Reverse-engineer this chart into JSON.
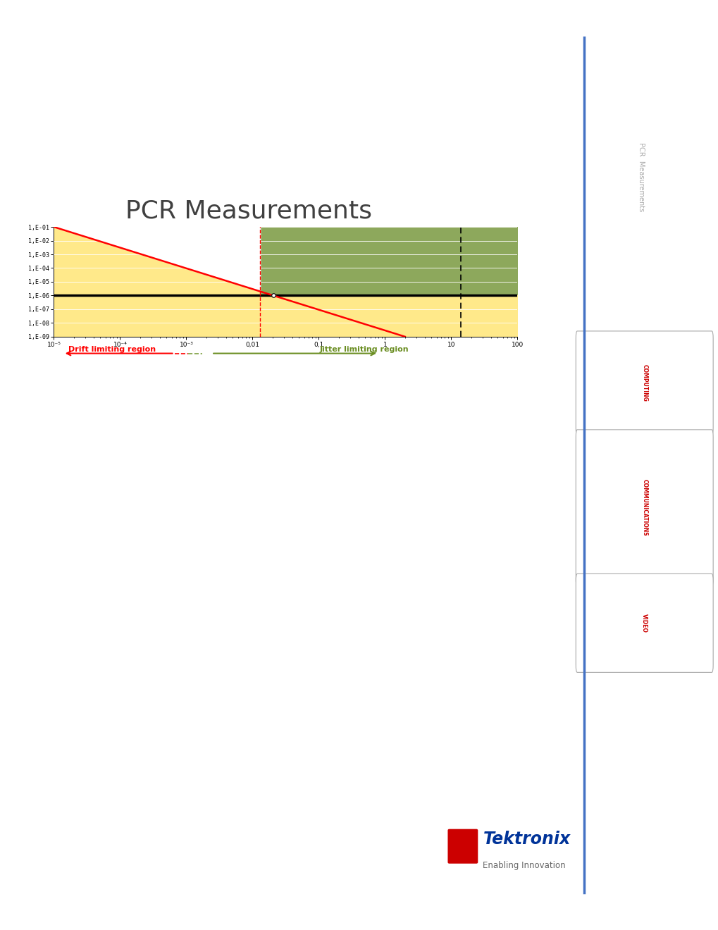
{
  "title": "PCR Measurements",
  "xmin": 1e-05,
  "xmax": 100,
  "ymin": 1e-09,
  "ymax": 0.1,
  "ytick_vals": [
    0.1,
    0.01,
    0.001,
    0.0001,
    1e-05,
    1e-06,
    1e-07,
    1e-08,
    1e-09
  ],
  "ytick_labels": [
    "1,E-01",
    "1,E-02",
    "1,E-03",
    "1,E-04",
    "1,E-05",
    "1,E-06",
    "1,E-07",
    "1,E-08",
    "1,E-09"
  ],
  "xtick_vals": [
    1e-05,
    0.0001,
    0.001,
    0.01,
    0.1,
    1,
    10,
    100
  ],
  "xtick_labels": [
    "10⁻⁵",
    "10⁻⁴",
    "10⁻³",
    "0,01",
    "0,1",
    "1",
    "10",
    "100"
  ],
  "color_yellow": "#FFE98A",
  "color_pink": "#F5B8D0",
  "color_green": "#8DA85C",
  "horizontal_line_y": 1e-06,
  "red_line_x1": 1e-05,
  "red_line_y1": 0.1,
  "red_line_x2": 2.0,
  "red_line_y2": 1e-09,
  "vline_dashed_red_x": 0.013,
  "vline_dashed_black_x": 14.0,
  "drift_label": "Drift limiting region",
  "jitter_label": "Jitter limiting region",
  "sidebar_text": "PCR  Measurements",
  "sidebar_tabs": [
    "COMPUTING",
    "COMMUNICATIONS",
    "VIDEO"
  ],
  "sidebar_line_color": "#4472C4",
  "tab_text_color": "#CC0000",
  "tektronix_brand": "Tektronix",
  "tektronix_sub": "Enabling Innovation",
  "tektronix_color": "#003399"
}
